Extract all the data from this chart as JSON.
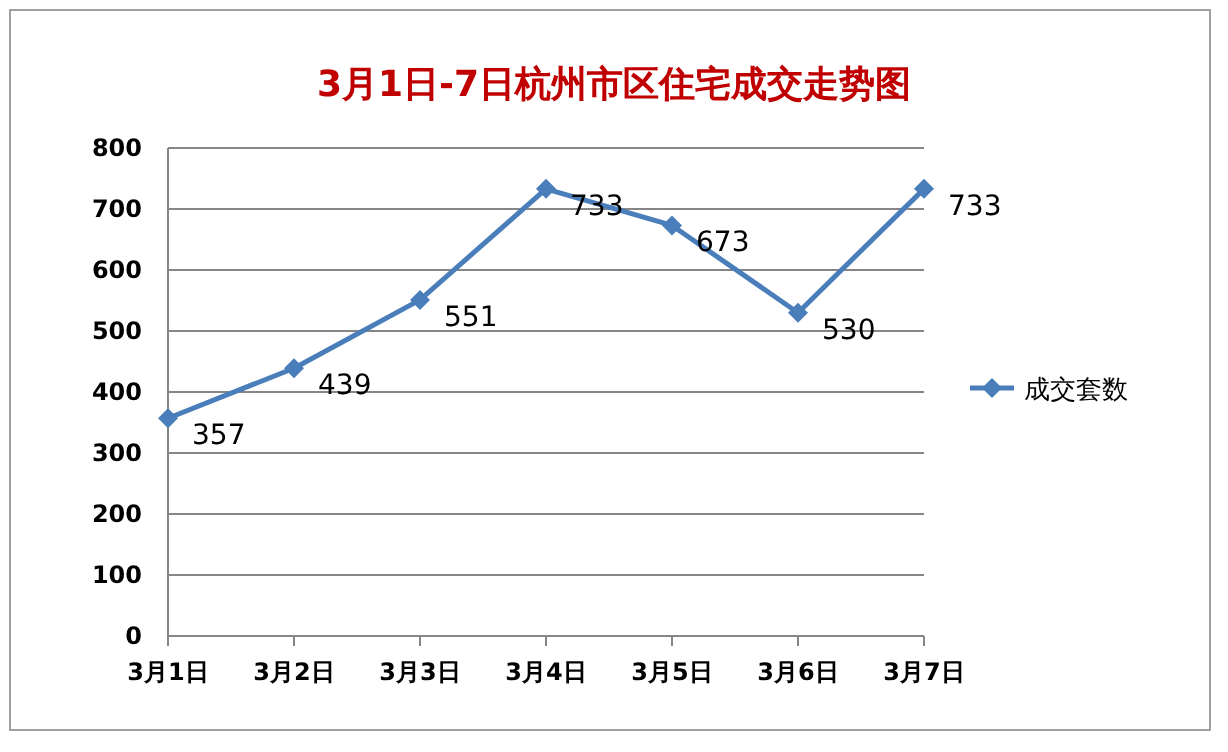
{
  "chart_data": {
    "type": "line",
    "title": "3月1日-7日杭州市区住宅成交走势图",
    "categories": [
      "3月1日",
      "3月2日",
      "3月3日",
      "3月4日",
      "3月5日",
      "3月6日",
      "3月7日"
    ],
    "series": [
      {
        "name": "成交套数",
        "color": "#4a7ebb",
        "values": [
          357,
          439,
          551,
          733,
          673,
          530,
          733
        ]
      }
    ],
    "ylim": [
      0,
      800
    ],
    "yticks": [
      0,
      100,
      200,
      300,
      400,
      500,
      600,
      700,
      800
    ],
    "grid": "y",
    "legend": "right",
    "marker": "diamond",
    "line_style": "solid",
    "data_labels": true
  }
}
